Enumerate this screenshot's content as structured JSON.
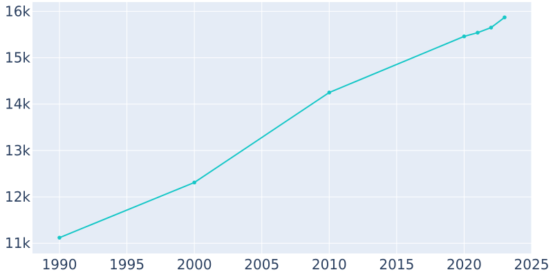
{
  "chart_data": {
    "type": "line",
    "title": "",
    "xlabel": "",
    "ylabel": "",
    "x": [
      1990,
      2000,
      2010,
      2020,
      2021,
      2022,
      2023
    ],
    "series": [
      {
        "values": [
          11120,
          12310,
          14250,
          15460,
          15540,
          15650,
          15870
        ]
      }
    ],
    "xlim": [
      1988,
      2025
    ],
    "ylim": [
      10780,
      16200
    ],
    "x_ticks": [
      1990,
      1995,
      2000,
      2005,
      2010,
      2015,
      2020,
      2025
    ],
    "x_tick_labels": [
      "1990",
      "1995",
      "2000",
      "2005",
      "2010",
      "2015",
      "2020",
      "2025"
    ],
    "y_ticks": [
      11000,
      12000,
      13000,
      14000,
      15000,
      16000
    ],
    "y_tick_labels": [
      "11k",
      "12k",
      "13k",
      "14k",
      "15k",
      "16k"
    ],
    "grid": true,
    "colors": {
      "plot_background": "#e5ecf6",
      "grid": "#ffffff",
      "line": "#17c7c7",
      "tick_text": "#2a3f5f"
    }
  }
}
